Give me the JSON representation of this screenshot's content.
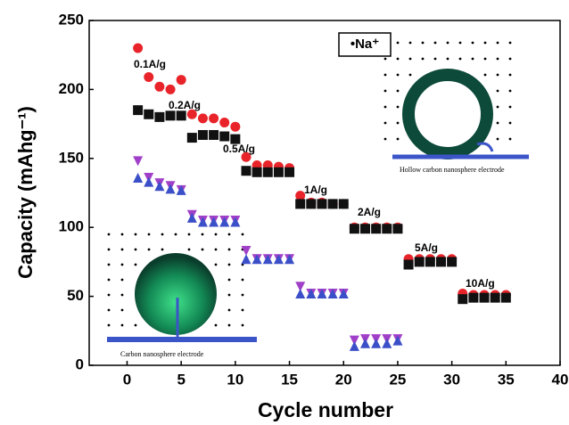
{
  "chart_data": {
    "type": "scatter",
    "xlabel": "Cycle number",
    "ylabel": "Capacity (mAhg⁻¹)",
    "xlim": [
      -3.5,
      40
    ],
    "ylim": [
      0,
      250
    ],
    "xticks": [
      0,
      5,
      10,
      15,
      20,
      25,
      30,
      35,
      40
    ],
    "yticks": [
      0,
      50,
      100,
      150,
      200,
      250
    ],
    "x": [
      1,
      2,
      3,
      4,
      5,
      6,
      7,
      8,
      9,
      10,
      11,
      12,
      13,
      14,
      15,
      16,
      17,
      18,
      19,
      20,
      21,
      22,
      23,
      24,
      25,
      26,
      27,
      28,
      29,
      30,
      31,
      32,
      33,
      34,
      35
    ],
    "series": [
      {
        "color": "#e8242a",
        "marker": "circle",
        "values": [
          230,
          209,
          202,
          200,
          207,
          182,
          179,
          179,
          176,
          173,
          151,
          145,
          145,
          144,
          143,
          123,
          118,
          118,
          117,
          117,
          100,
          100,
          100,
          100,
          100,
          77,
          77,
          77,
          77,
          77,
          52,
          51,
          51,
          51,
          51
        ]
      },
      {
        "color": "#111111",
        "marker": "square",
        "values": [
          185,
          182,
          180,
          181,
          181,
          165,
          167,
          167,
          166,
          164,
          141,
          140,
          140,
          140,
          140,
          117,
          117,
          117,
          117,
          117,
          99,
          99,
          99,
          99,
          99,
          73,
          75,
          75,
          75,
          75,
          48,
          49,
          49,
          49,
          49
        ]
      },
      {
        "color": "#a040c8",
        "marker": "triangle-down",
        "values": [
          148,
          136,
          132,
          130,
          127,
          109,
          105,
          105,
          105,
          105,
          83,
          77,
          77,
          77,
          77,
          57,
          52,
          52,
          52,
          52,
          18,
          19,
          19,
          19,
          19,
          null,
          null,
          null,
          null,
          null,
          null,
          null,
          null,
          null,
          null
        ]
      },
      {
        "color": "#3b4fc8",
        "marker": "triangle-up",
        "values": [
          136,
          133,
          130,
          128,
          127,
          107,
          104,
          104,
          104,
          104,
          77,
          77,
          77,
          77,
          77,
          52,
          52,
          52,
          52,
          52,
          14,
          16,
          16,
          16,
          18,
          null,
          null,
          null,
          null,
          null,
          null,
          null,
          null,
          null,
          null
        ]
      }
    ],
    "annotations": [
      "0.1A/g",
      "0.2A/g",
      "0.5A/g",
      "1A/g",
      "2A/g",
      "5A/g",
      "10A/g"
    ],
    "legend_label": "•Na⁺",
    "inset_labels": [
      "Hollow carbon nanosphere electrode",
      "Carbon nanosphere electrode"
    ]
  }
}
